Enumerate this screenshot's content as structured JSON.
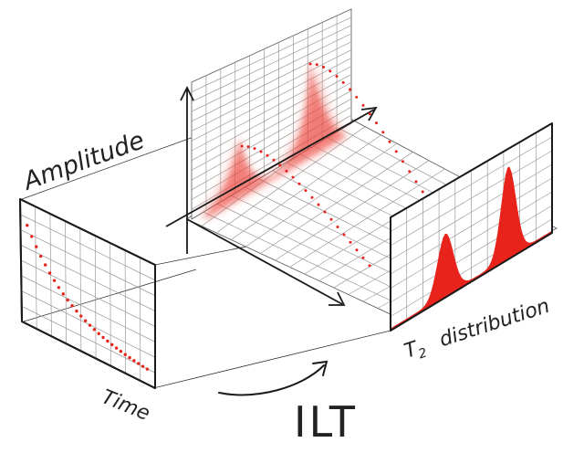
{
  "labels": {
    "amplitude": "Amplitude",
    "time": "Time",
    "t2_distribution_symbol": "T",
    "t2_distribution_subscript": "2",
    "t2_distribution_word": "distribution",
    "transform": "ILT"
  },
  "colors": {
    "accent": "#e8231b",
    "ink": "#1a1a1a",
    "grid": "#9a9a9a",
    "glow": "#f7a59c"
  }
}
